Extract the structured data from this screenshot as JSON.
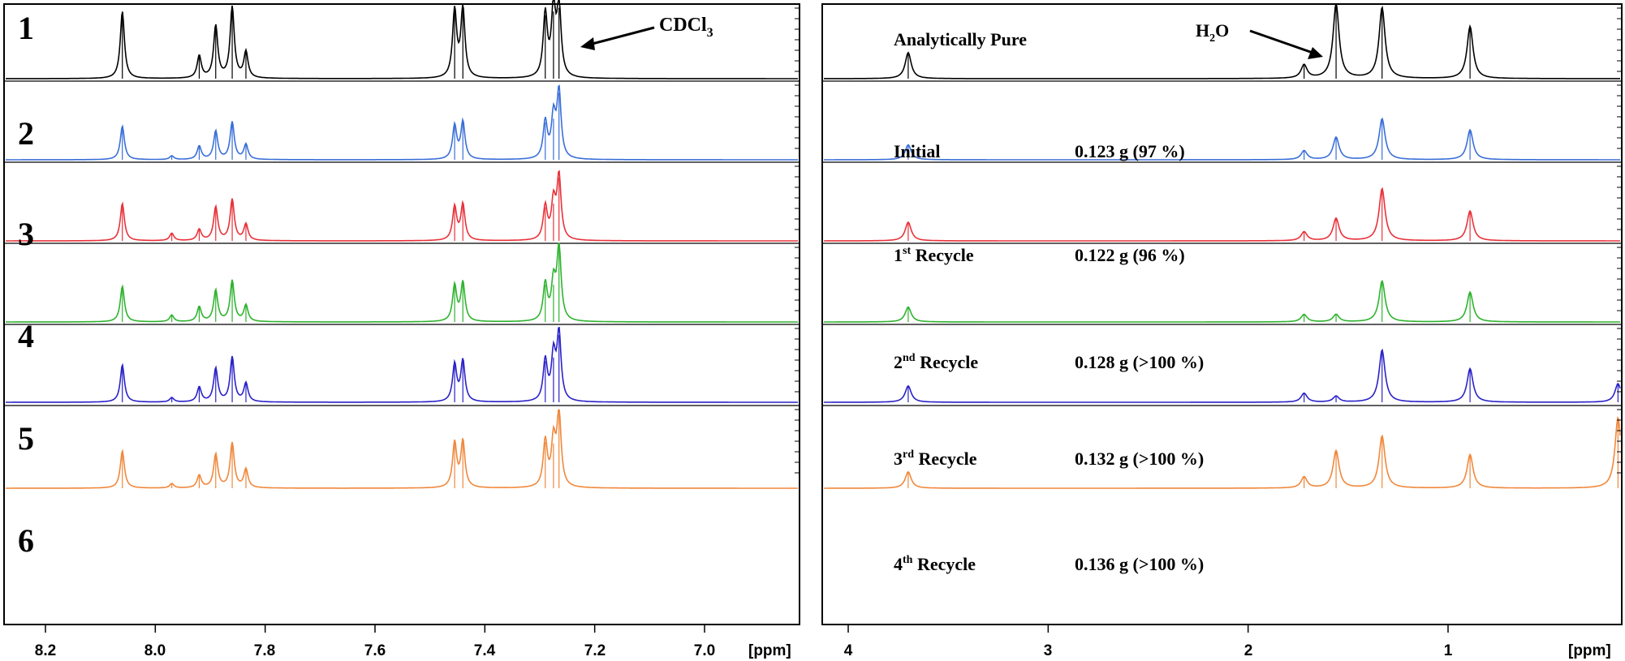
{
  "colors": {
    "trace_1": "#000000",
    "trace_2": "#3a6fd8",
    "trace_3": "#e8323a",
    "trace_4": "#2fb32f",
    "trace_5": "#2a22c8",
    "trace_6": "#f0883c",
    "frame": "#000000"
  },
  "chart_data": [
    {
      "type": "line",
      "panel": "aromatic region",
      "xlabel": "[ppm]",
      "xlim": [
        8.3,
        6.85
      ],
      "x_reversed": true,
      "x_ticks": [
        "8.2",
        "8.0",
        "7.8",
        "7.6",
        "7.4",
        "7.2",
        "7.0"
      ],
      "x_tick_values": [
        8.2,
        8.0,
        7.8,
        7.6,
        7.4,
        7.2,
        7.0
      ],
      "traces": [
        "1",
        "2",
        "3",
        "4",
        "5",
        "6"
      ],
      "annotation": {
        "label_main": "CDCl",
        "label_sub": "3",
        "ppm": 7.26
      },
      "peaks": [
        {
          "ppm": 8.06,
          "heights": [
            0.9,
            0.45,
            0.5,
            0.48,
            0.5,
            0.5
          ]
        },
        {
          "ppm": 7.97,
          "heights": [
            0.0,
            0.05,
            0.1,
            0.09,
            0.06,
            0.06
          ]
        },
        {
          "ppm": 7.92,
          "heights": [
            0.3,
            0.18,
            0.15,
            0.2,
            0.2,
            0.17
          ]
        },
        {
          "ppm": 7.89,
          "heights": [
            0.7,
            0.38,
            0.45,
            0.42,
            0.45,
            0.45
          ]
        },
        {
          "ppm": 7.86,
          "heights": [
            0.95,
            0.5,
            0.55,
            0.55,
            0.6,
            0.6
          ]
        },
        {
          "ppm": 7.835,
          "heights": [
            0.35,
            0.2,
            0.22,
            0.22,
            0.25,
            0.25
          ]
        },
        {
          "ppm": 7.455,
          "heights": [
            0.9,
            0.45,
            0.45,
            0.48,
            0.5,
            0.6
          ]
        },
        {
          "ppm": 7.44,
          "heights": [
            0.92,
            0.5,
            0.48,
            0.52,
            0.55,
            0.62
          ]
        },
        {
          "ppm": 7.29,
          "heights": [
            0.85,
            0.5,
            0.45,
            0.5,
            0.55,
            0.62
          ]
        },
        {
          "ppm": 7.275,
          "heights": [
            0.9,
            0.55,
            0.5,
            0.5,
            0.6,
            0.6
          ]
        },
        {
          "ppm": 7.265,
          "heights": [
            0.95,
            0.9,
            0.85,
            1.0,
            0.9,
            1.0
          ]
        }
      ]
    },
    {
      "type": "line",
      "panel": "aliphatic region",
      "xlabel": "[ppm]",
      "xlim": [
        4.2,
        -0.2
      ],
      "x_reversed": true,
      "x_ticks": [
        "4",
        "3",
        "2",
        "1"
      ],
      "x_tick_values": [
        4,
        3,
        2,
        1
      ],
      "annotation": {
        "label_main": "H",
        "label_sub": "2",
        "label_tail": "O",
        "ppm": 1.56
      },
      "samples": [
        {
          "label_main": "Analytically Pure",
          "label_sup": "",
          "label_tail": "",
          "mass": ""
        },
        {
          "label_main": "Initial",
          "label_sup": "",
          "label_tail": "",
          "mass": "0.123 g (97 %)"
        },
        {
          "label_main": "1",
          "label_sup": "st",
          "label_tail": " Recycle",
          "mass": "0.122 g (96 %)"
        },
        {
          "label_main": "2",
          "label_sup": "nd",
          "label_tail": " Recycle",
          "mass": "0.128 g (>100 %)"
        },
        {
          "label_main": "3",
          "label_sup": "rd",
          "label_tail": " Recycle",
          "mass": "0.132 g (>100 %)"
        },
        {
          "label_main": "4",
          "label_sup": "th",
          "label_tail": " Recycle",
          "mass": "0.136 g (>100 %)"
        }
      ],
      "peaks": [
        {
          "ppm": 3.7,
          "heights": [
            0.35,
            0.2,
            0.25,
            0.2,
            0.22,
            0.22
          ]
        },
        {
          "ppm": 1.72,
          "heights": [
            0.18,
            0.12,
            0.12,
            0.1,
            0.12,
            0.15
          ]
        },
        {
          "ppm": 1.56,
          "heights": [
            1.0,
            0.3,
            0.3,
            0.1,
            0.08,
            0.5
          ]
        },
        {
          "ppm": 1.33,
          "heights": [
            0.95,
            0.55,
            0.7,
            0.55,
            0.7,
            0.7
          ]
        },
        {
          "ppm": 0.89,
          "heights": [
            0.7,
            0.4,
            0.4,
            0.4,
            0.45,
            0.45
          ]
        },
        {
          "ppm": 0.15,
          "heights": [
            0.0,
            0.0,
            0.0,
            0.0,
            0.25,
            0.95
          ]
        }
      ]
    }
  ]
}
